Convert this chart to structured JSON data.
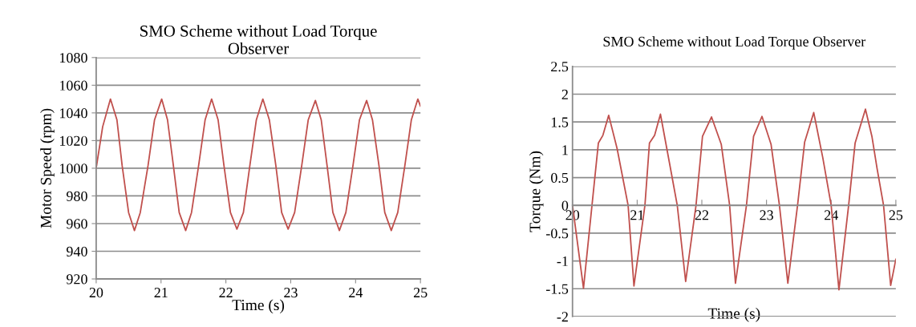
{
  "chart_data": [
    {
      "type": "line",
      "title": "SMO Scheme without Load Torque\nObserver",
      "xlabel": "Time (s)",
      "ylabel": "Motor Speed (rpm)",
      "xlim": [
        20,
        25
      ],
      "xticks": [
        20,
        21,
        22,
        23,
        24,
        25
      ],
      "ylim": [
        920,
        1080
      ],
      "yticks": [
        920,
        940,
        960,
        980,
        1000,
        1020,
        1040,
        1060,
        1080
      ],
      "grid": "y",
      "legend": false,
      "series": [
        {
          "color": "#c0504d",
          "x": [
            20,
            20.1,
            20.22,
            20.32,
            20.4,
            20.5,
            20.59,
            20.68,
            20.8,
            20.9,
            21.01,
            21.1,
            21.19,
            21.28,
            21.38,
            21.47,
            21.58,
            21.68,
            21.78,
            21.88,
            21.97,
            22.07,
            22.17,
            22.27,
            22.37,
            22.47,
            22.57,
            22.67,
            22.77,
            22.86,
            22.96,
            23.06,
            23.17,
            23.27,
            23.38,
            23.47,
            23.56,
            23.65,
            23.75,
            23.85,
            23.96,
            24.06,
            24.17,
            24.26,
            24.36,
            24.45,
            24.55,
            24.65,
            24.76,
            24.86,
            24.96,
            25
          ],
          "values": [
            1000,
            1030,
            1050,
            1035,
            1002,
            968,
            955,
            968,
            1002,
            1035,
            1050,
            1035,
            1002,
            968,
            955,
            968,
            1002,
            1035,
            1050,
            1035,
            1002,
            968,
            956,
            968,
            1002,
            1035,
            1050,
            1035,
            1002,
            968,
            956,
            968,
            1002,
            1035,
            1049,
            1035,
            1002,
            968,
            955,
            968,
            1002,
            1035,
            1049,
            1035,
            1002,
            968,
            955,
            968,
            1002,
            1035,
            1050,
            1045
          ]
        }
      ]
    },
    {
      "type": "line",
      "title": "SMO Scheme without Load Torque Observer",
      "xlabel": "Time (s)",
      "ylabel": "Torque (Nm)",
      "xlim": [
        20,
        25
      ],
      "xticks": [
        20,
        21,
        22,
        23,
        24,
        25
      ],
      "ylim": [
        -2,
        2.5
      ],
      "yticks": [
        -2,
        -1.5,
        -1,
        -0.5,
        0,
        0.5,
        1,
        1.5,
        2,
        2.5
      ],
      "grid": "y",
      "legend": false,
      "series": [
        {
          "color": "#c0504d",
          "x": [
            20,
            20.17,
            20.4,
            20.47,
            20.56,
            20.69,
            20.86,
            20.95,
            21.12,
            21.19,
            21.27,
            21.36,
            21.5,
            21.62,
            21.75,
            21.91,
            22.01,
            22.15,
            22.3,
            22.43,
            22.52,
            22.69,
            22.8,
            22.93,
            23.07,
            23.2,
            23.33,
            23.48,
            23.59,
            23.73,
            23.87,
            24.0,
            24.12,
            24.27,
            24.37,
            24.53,
            24.63,
            24.71,
            24.81,
            24.92,
            25
          ],
          "values": [
            0,
            -1.49,
            1.12,
            1.26,
            1.62,
            1.02,
            0,
            -1.45,
            0,
            1.12,
            1.26,
            1.64,
            0.76,
            0,
            -1.37,
            0,
            1.24,
            1.59,
            1.1,
            0,
            -1.4,
            0,
            1.24,
            1.6,
            1.1,
            0,
            -1.4,
            0,
            1.14,
            1.67,
            0.86,
            0,
            -1.52,
            0,
            1.12,
            1.73,
            1.24,
            0.66,
            0,
            -1.44,
            -0.97
          ]
        }
      ]
    }
  ]
}
